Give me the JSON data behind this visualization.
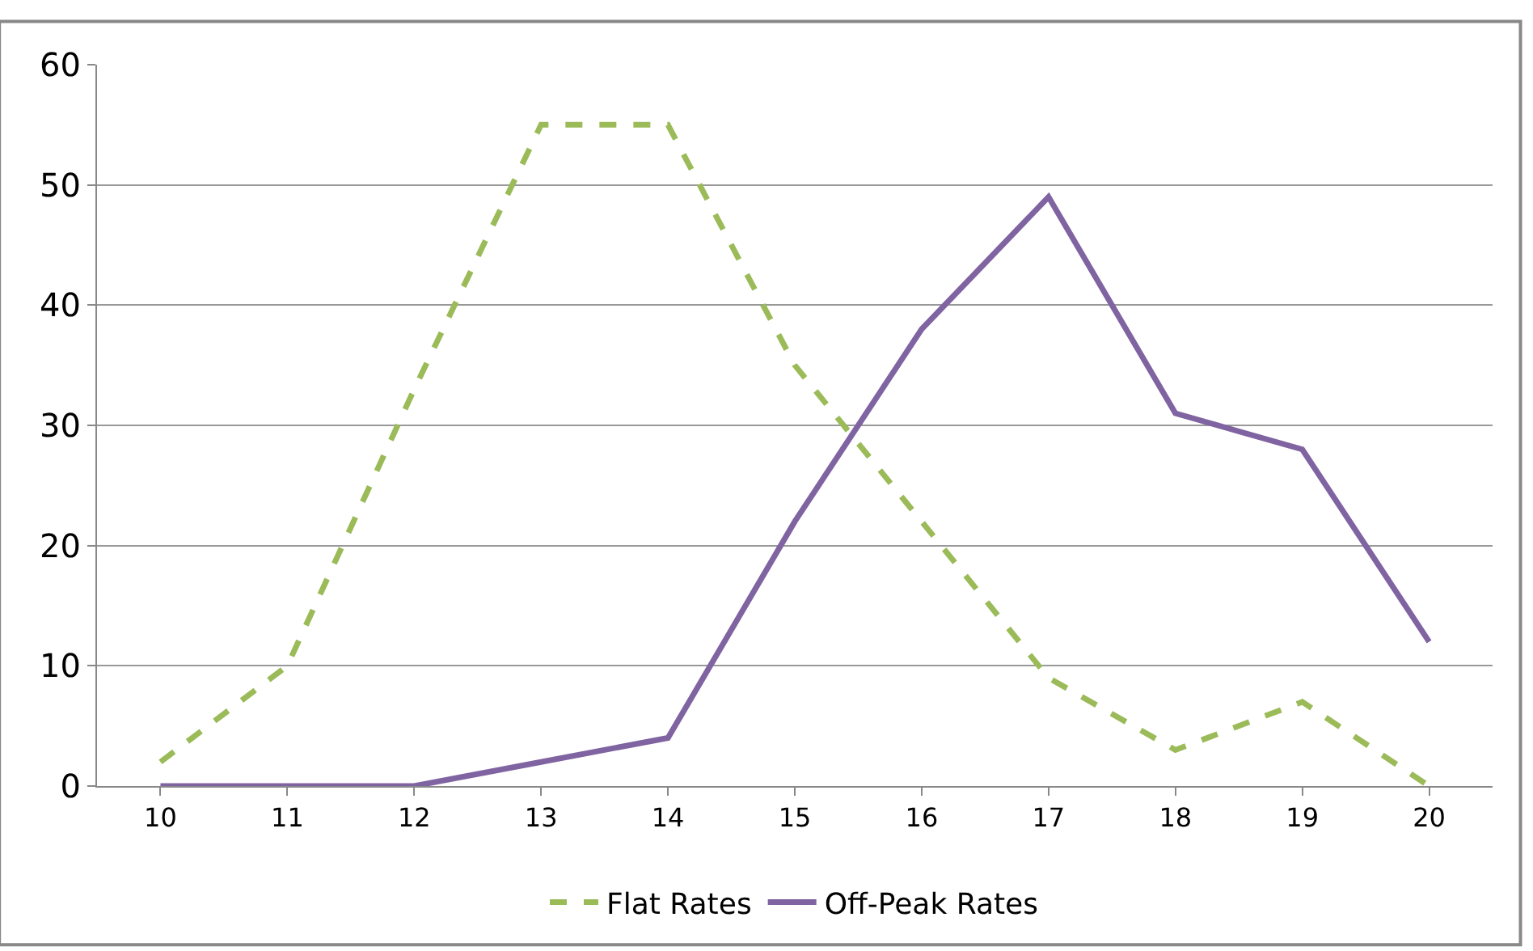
{
  "chart_data": {
    "type": "line",
    "categories": [
      "10",
      "11",
      "12",
      "13",
      "14",
      "15",
      "16",
      "17",
      "18",
      "19",
      "20"
    ],
    "series": [
      {
        "name": "Flat Rates",
        "color": "#9bbb59",
        "line_style": "dashed",
        "values": [
          2,
          10,
          33,
          55,
          55,
          35,
          22,
          9,
          3,
          7,
          0
        ]
      },
      {
        "name": "Off-Peak Rates",
        "color": "#8064a2",
        "line_style": "solid",
        "values": [
          0,
          0,
          0,
          2,
          4,
          22,
          38,
          49,
          31,
          28,
          12
        ]
      }
    ],
    "ylim": [
      0,
      60
    ],
    "yticks": [
      0,
      10,
      20,
      30,
      40,
      50,
      60
    ],
    "grid": "y",
    "legend": "bottom",
    "marker": "none"
  }
}
